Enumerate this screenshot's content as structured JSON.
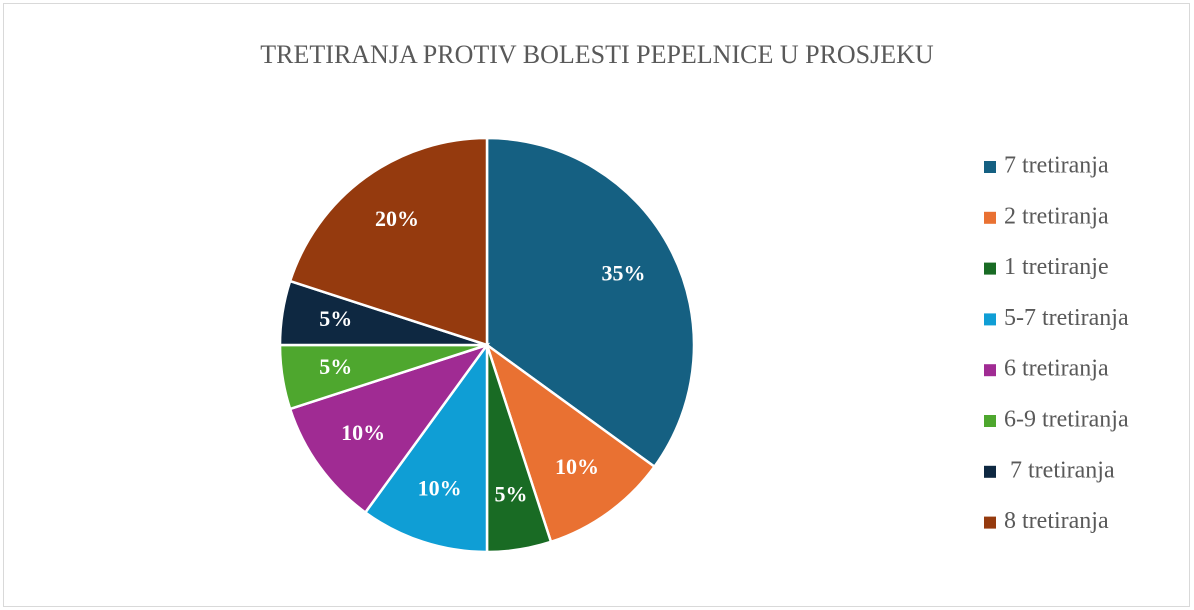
{
  "chart_data": {
    "type": "pie",
    "title": "TRETIRANJA PROTIV BOLESTI PEPELNICE U PROSJEKU",
    "categories": [
      "7 tretiranja",
      "2 tretiranja",
      "1 tretiranje",
      "5-7 tretiranja",
      "6 tretiranja",
      "6-9 tretiranja",
      " 7 tretiranja",
      "8 tretiranja"
    ],
    "values": [
      35,
      10,
      5,
      10,
      10,
      5,
      5,
      20
    ],
    "value_labels": [
      "35%",
      "10%",
      "5%",
      "10%",
      "10%",
      "5%",
      "5%",
      "20%"
    ],
    "colors": [
      "#156082",
      "#E97132",
      "#196B24",
      "#0F9ED5",
      "#A02B93",
      "#4EA72E",
      "#0E2841",
      "#953A0E"
    ],
    "legend": "right"
  }
}
